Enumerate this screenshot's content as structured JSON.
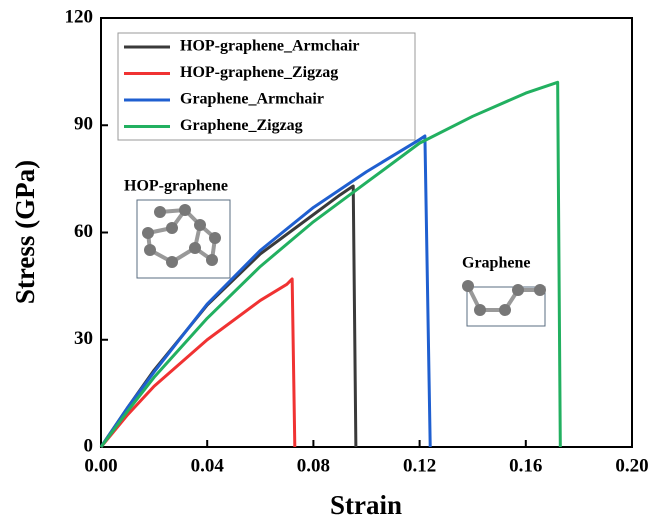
{
  "chart_data": {
    "type": "line",
    "xlabel": "Strain",
    "ylabel": "Stress (GPa)",
    "xlim": [
      0,
      0.2
    ],
    "ylim": [
      0,
      120
    ],
    "xticks": [
      {
        "value": 0,
        "label": "0.00"
      },
      {
        "value": 0.04,
        "label": "0.04"
      },
      {
        "value": 0.08,
        "label": "0.08"
      },
      {
        "value": 0.12,
        "label": "0.12"
      },
      {
        "value": 0.16,
        "label": "0.16"
      },
      {
        "value": 0.2,
        "label": "0.20"
      }
    ],
    "yticks": [
      0,
      30,
      60,
      90,
      120
    ],
    "legend": "upper left",
    "annotations": [
      "HOP-graphene",
      "Graphene"
    ],
    "series": [
      {
        "name": "HOP-graphene_Armchair",
        "color": "#3a3a3a",
        "x": [
          0,
          0.01,
          0.02,
          0.04,
          0.06,
          0.08,
          0.09,
          0.095,
          0.096
        ],
        "values": [
          0,
          11,
          21.5,
          39.7,
          54,
          65,
          70.5,
          73,
          0
        ]
      },
      {
        "name": "HOP-graphene_Zigzag",
        "color": "#f03232",
        "x": [
          0,
          0.01,
          0.02,
          0.04,
          0.06,
          0.07,
          0.072,
          0.073
        ],
        "values": [
          0,
          9,
          17,
          30,
          41,
          45.5,
          47,
          0
        ]
      },
      {
        "name": "Graphene_Armchair",
        "color": "#1f5fd0",
        "x": [
          0,
          0.01,
          0.02,
          0.04,
          0.06,
          0.08,
          0.1,
          0.12,
          0.122,
          0.124
        ],
        "values": [
          0,
          11,
          21,
          40,
          55,
          67,
          77,
          86,
          87,
          0
        ]
      },
      {
        "name": "Graphene_Zigzag",
        "color": "#22b060",
        "x": [
          0,
          0.01,
          0.02,
          0.04,
          0.06,
          0.08,
          0.1,
          0.12,
          0.14,
          0.16,
          0.172,
          0.173
        ],
        "values": [
          0,
          10,
          19.5,
          36,
          50.5,
          63,
          74,
          85,
          92.5,
          99,
          102,
          0
        ]
      }
    ]
  }
}
